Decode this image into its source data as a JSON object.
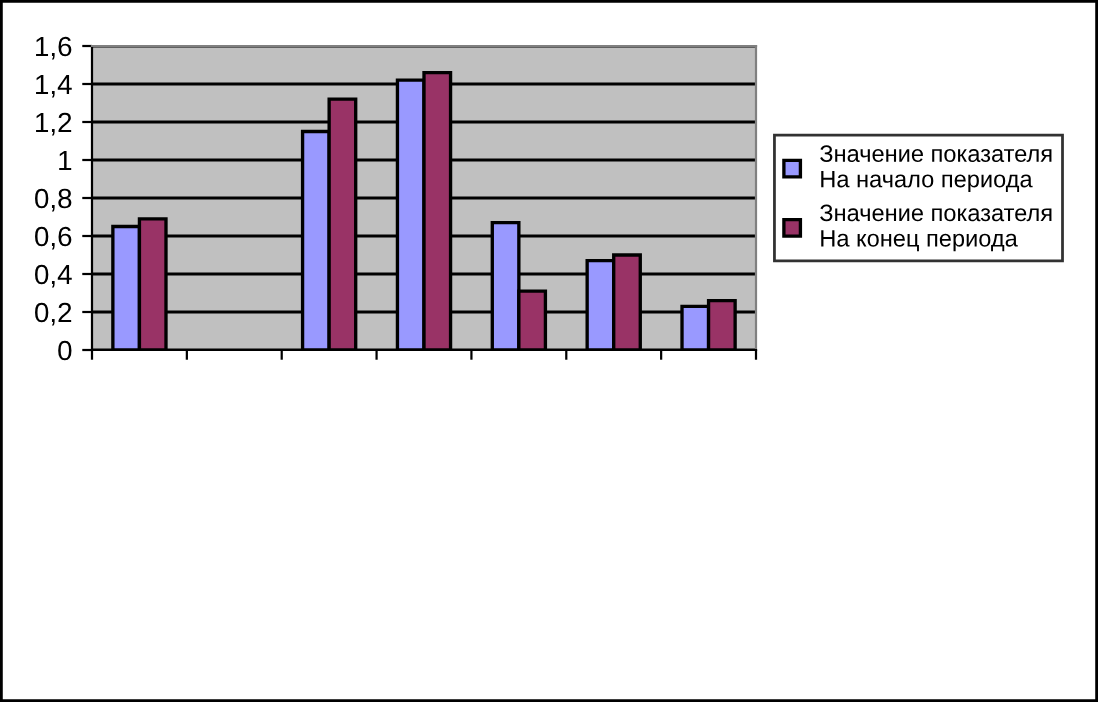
{
  "chart_data": {
    "type": "bar",
    "categories": [
      null,
      null,
      null,
      null,
      null,
      null,
      null
    ],
    "series": [
      {
        "name": "Значение показателя\nНа начало периода",
        "color": "#9999ff",
        "values": [
          0.65,
          null,
          1.15,
          1.42,
          0.67,
          0.47,
          0.23
        ]
      },
      {
        "name": "Значение показателя\nНа конец периода",
        "color": "#993366",
        "values": [
          0.69,
          null,
          1.32,
          1.46,
          0.31,
          0.5,
          0.26
        ]
      }
    ],
    "ylim": [
      0,
      1.6
    ],
    "yticks": [
      {
        "value": 0,
        "label": "0"
      },
      {
        "value": 0.2,
        "label": "0,2"
      },
      {
        "value": 0.4,
        "label": "0,4"
      },
      {
        "value": 0.6,
        "label": "0,6"
      },
      {
        "value": 0.8,
        "label": "0,8"
      },
      {
        "value": 1,
        "label": "1"
      },
      {
        "value": 1.2,
        "label": "1,2"
      },
      {
        "value": 1.4,
        "label": "1,4"
      },
      {
        "value": 1.6,
        "label": "1,6"
      }
    ],
    "grid": "y",
    "legend": "right"
  }
}
